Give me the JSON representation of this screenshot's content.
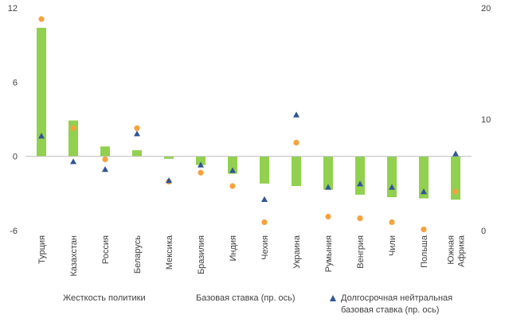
{
  "chart_data": {
    "type": "bar",
    "categories": [
      "Турция",
      "Казахстан",
      "Россия",
      "Беларусь",
      "Мексика",
      "Бразилия",
      "Индия",
      "Чехия",
      "Украина",
      "Румыния",
      "Венгрия",
      "Чили",
      "Польша",
      "Южная Африка"
    ],
    "category_label_lines": [
      [
        "Турция"
      ],
      [
        "Казахстан"
      ],
      [
        "Россия"
      ],
      [
        "Беларусь"
      ],
      [
        "Мексика"
      ],
      [
        "Бразилия"
      ],
      [
        "Индия"
      ],
      [
        "Чехия"
      ],
      [
        "Украина"
      ],
      [
        "Румыния"
      ],
      [
        "Венгрия"
      ],
      [
        "Чили"
      ],
      [
        "Польша"
      ],
      [
        "Южная",
        "Африка"
      ]
    ],
    "series": [
      {
        "name": "Жесткость политики",
        "kind": "bar",
        "axis": "left",
        "color": "#92d050",
        "values": [
          10.4,
          2.9,
          0.8,
          0.5,
          -0.2,
          -0.7,
          -1.4,
          -2.2,
          -2.4,
          -2.7,
          -3.1,
          -3.3,
          -3.4,
          -3.5
        ]
      },
      {
        "name": "Базовая ставка (пр. ось)",
        "kind": "dot",
        "axis": "right",
        "color": "#f4a23c",
        "values": [
          19.0,
          9.2,
          6.4,
          9.2,
          4.4,
          5.2,
          4.0,
          0.75,
          7.9,
          1.25,
          1.1,
          0.75,
          0.1,
          3.5
        ]
      },
      {
        "name": "Долгосрочная нейтральная базовая ставка (пр. ось)",
        "kind": "triangle",
        "axis": "right",
        "color": "#2f5597",
        "values": [
          8.5,
          6.2,
          5.5,
          8.7,
          4.5,
          5.9,
          5.4,
          2.8,
          10.4,
          3.9,
          4.2,
          3.9,
          3.5,
          6.9
        ]
      }
    ],
    "left_axis": {
      "min": -6,
      "max": 12,
      "ticks": [
        12,
        6,
        0,
        -6
      ]
    },
    "right_axis": {
      "min": 0,
      "max": 20,
      "ticks": [
        20,
        10,
        0
      ]
    },
    "legend_position": "bottom",
    "grid": false
  },
  "legend": {
    "items": [
      {
        "lines": [
          "Жесткость политики"
        ]
      },
      {
        "lines": [
          "Базовая ставка (пр. ось)"
        ]
      },
      {
        "lines": [
          "Долгосрочная нейтральная",
          "базовая ставка (пр. ось)"
        ]
      }
    ]
  }
}
